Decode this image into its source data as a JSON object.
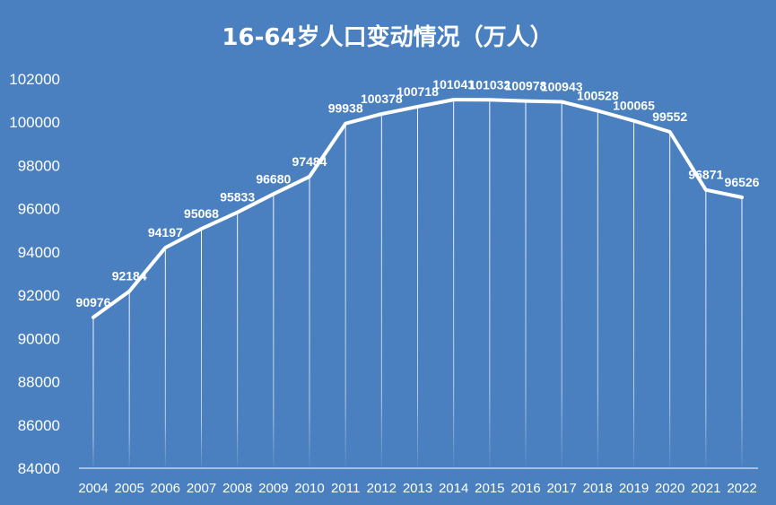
{
  "title": "16-64岁人口变动情况（万人）",
  "colors": {
    "background": "#4a80bf",
    "line": "#ffffff",
    "text": "#ffffff"
  },
  "chart_data": {
    "type": "line",
    "title": "16-64岁人口变动情况（万人）",
    "xlabel": "",
    "ylabel": "",
    "ylim": [
      84000,
      102000
    ],
    "yticks": [
      84000,
      86000,
      88000,
      90000,
      92000,
      94000,
      96000,
      98000,
      100000,
      102000
    ],
    "grid": false,
    "categories": [
      "2004",
      "2005",
      "2006",
      "2007",
      "2008",
      "2009",
      "2010",
      "2011",
      "2012",
      "2013",
      "2014",
      "2015",
      "2016",
      "2017",
      "2018",
      "2019",
      "2020",
      "2021",
      "2022"
    ],
    "series": [
      {
        "values": [
          90976,
          92184,
          94197,
          95068,
          95833,
          96680,
          97484,
          99938,
          100378,
          100718,
          101041,
          101032,
          100978,
          100943,
          100528,
          100065,
          99552,
          96871,
          96526
        ]
      }
    ],
    "data_labels": [
      "90976",
      "92184",
      "94197",
      "95068",
      "95833",
      "96680",
      "97484",
      "99938",
      "100378",
      "100718",
      "101041",
      "101032",
      "100978",
      "100943",
      "100528",
      "100065",
      "99552",
      "96871",
      "96526"
    ]
  }
}
